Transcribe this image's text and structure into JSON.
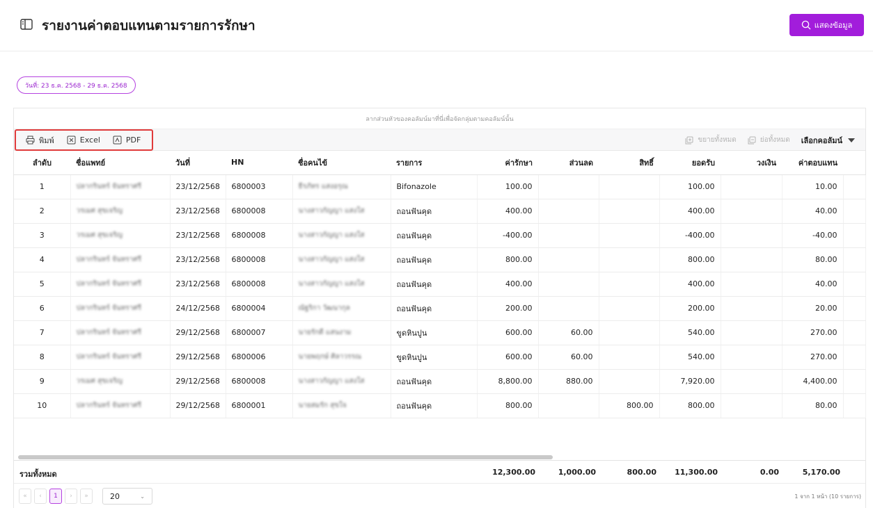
{
  "header": {
    "title": "รายงานค่าตอบแทนตามรายการรักษา",
    "show_button": "แสดงข้อมูล"
  },
  "date_range": "วันที่: 23 ธ.ค. 2568 - 29 ธ.ค. 2568",
  "grid": {
    "group_hint": "ลากส่วนหัวของคอลัมน์มาที่นี่เพื่อจัดกลุ่มตามคอลัมน์นั้น",
    "toolbar": {
      "print": "พิมพ์",
      "excel": "Excel",
      "pdf": "PDF",
      "expand_all": "ขยายทั้งหมด",
      "collapse_all": "ย่อทั้งหมด",
      "choose_columns": "เลือกคอลัมน์"
    },
    "columns": [
      "ลำดับ",
      "ชื่อแพทย์",
      "วันที่",
      "HN",
      "ชื่อคนไข้",
      "รายการ",
      "ค่ารักษา",
      "ส่วนลด",
      "สิทธิ์",
      "ยอดรับ",
      "วงเงิน",
      "ค่าตอบแทน"
    ],
    "rows": [
      {
        "no": "1",
        "doctor": "ปลากรินทร์ จันทราศรี",
        "date": "23/12/2568",
        "hn": "6800003",
        "patient": "ธีรภัทร แสงอรุณ",
        "item": "Bifonazole",
        "fee": "100.00",
        "discount": "",
        "right": "",
        "received": "100.00",
        "limit": "",
        "comp": "10.00"
      },
      {
        "no": "2",
        "doctor": "วรเมศ สุขเจริญ",
        "date": "23/12/2568",
        "hn": "6800008",
        "patient": "นางสาวกัญญา แสงใส",
        "item": "ถอนฟันคุด",
        "fee": "400.00",
        "discount": "",
        "right": "",
        "received": "400.00",
        "limit": "",
        "comp": "40.00"
      },
      {
        "no": "3",
        "doctor": "วรเมศ สุขเจริญ",
        "date": "23/12/2568",
        "hn": "6800008",
        "patient": "นางสาวกัญญา แสงใส",
        "item": "ถอนฟันคุด",
        "fee": "-400.00",
        "discount": "",
        "right": "",
        "received": "-400.00",
        "limit": "",
        "comp": "-40.00"
      },
      {
        "no": "4",
        "doctor": "ปลากรินทร์ จันทราศรี",
        "date": "23/12/2568",
        "hn": "6800008",
        "patient": "นางสาวกัญญา แสงใส",
        "item": "ถอนฟันคุด",
        "fee": "800.00",
        "discount": "",
        "right": "",
        "received": "800.00",
        "limit": "",
        "comp": "80.00"
      },
      {
        "no": "5",
        "doctor": "ปลากรินทร์ จันทราศรี",
        "date": "23/12/2568",
        "hn": "6800008",
        "patient": "นางสาวกัญญา แสงใส",
        "item": "ถอนฟันคุด",
        "fee": "400.00",
        "discount": "",
        "right": "",
        "received": "400.00",
        "limit": "",
        "comp": "40.00"
      },
      {
        "no": "6",
        "doctor": "ปลากรินทร์ จันทราศรี",
        "date": "24/12/2568",
        "hn": "6800004",
        "patient": "ณัฐริกา วัฒนากุล",
        "item": "ถอนฟันคุด",
        "fee": "200.00",
        "discount": "",
        "right": "",
        "received": "200.00",
        "limit": "",
        "comp": "20.00"
      },
      {
        "no": "7",
        "doctor": "ปลากรินทร์ จันทราศรี",
        "date": "29/12/2568",
        "hn": "6800007",
        "patient": "นายรักดี แสนงาม",
        "item": "ขูดหินปูน",
        "fee": "600.00",
        "discount": "60.00",
        "right": "",
        "received": "540.00",
        "limit": "",
        "comp": "270.00"
      },
      {
        "no": "8",
        "doctor": "ปลากรินทร์ จันทราศรี",
        "date": "29/12/2568",
        "hn": "6800006",
        "patient": "นายพฤกษ์ ศิลาวรรณ",
        "item": "ขูดหินปูน",
        "fee": "600.00",
        "discount": "60.00",
        "right": "",
        "received": "540.00",
        "limit": "",
        "comp": "270.00"
      },
      {
        "no": "9",
        "doctor": "วรเมศ สุขเจริญ",
        "date": "29/12/2568",
        "hn": "6800008",
        "patient": "นางสาวกัญญา แสงใส",
        "item": "ถอนฟันคุด",
        "fee": "8,800.00",
        "discount": "880.00",
        "right": "",
        "received": "7,920.00",
        "limit": "",
        "comp": "4,400.00"
      },
      {
        "no": "10",
        "doctor": "ปลากรินทร์ จันทราศรี",
        "date": "29/12/2568",
        "hn": "6800001",
        "patient": "นายสมรัก สุขใจ",
        "item": "ถอนฟันคุด",
        "fee": "800.00",
        "discount": "",
        "right": "800.00",
        "received": "800.00",
        "limit": "",
        "comp": "80.00"
      }
    ],
    "totals": {
      "label": "รวมทั้งหมด",
      "fee": "12,300.00",
      "discount": "1,000.00",
      "right": "800.00",
      "received": "11,300.00",
      "limit": "0.00",
      "comp": "5,170.00"
    }
  },
  "pager": {
    "first": "«",
    "prev": "‹",
    "current_page": "1",
    "next": "›",
    "last": "»",
    "page_size": "20",
    "info": "1 จาก 1 หน้า (10 รายการ)"
  },
  "colors": {
    "accent": "#a21ddb",
    "highlight_border": "#e03b3b"
  },
  "icons": {
    "title": "book-open-icon",
    "show": "search-icon",
    "print": "printer-icon",
    "excel": "excel-file-icon",
    "pdf": "pdf-file-icon",
    "expand": "expand-icon",
    "collapse": "collapse-icon"
  }
}
